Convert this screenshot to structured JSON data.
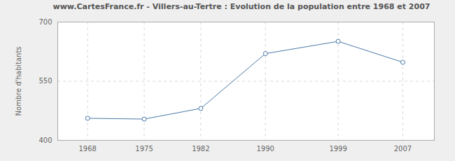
{
  "chart_data": {
    "type": "line",
    "title": "www.CartesFrance.fr - Villers-au-Tertre : Evolution de la population entre 1968 et 2007",
    "y_label": "Nombre d'habitants",
    "x": [
      1968,
      1975,
      1982,
      1990,
      1999,
      2007
    ],
    "values": [
      456,
      454,
      481,
      620,
      651,
      598
    ],
    "color": "#4a78a8",
    "marker": "circle",
    "line_style": "solid",
    "xlim": [
      1964.3,
      2010.9
    ],
    "xticks": [
      1968,
      1975,
      1982,
      1990,
      1999,
      2007
    ],
    "ylim": [
      400,
      700
    ],
    "yticks": [
      400,
      550,
      700
    ],
    "grid": true
  }
}
